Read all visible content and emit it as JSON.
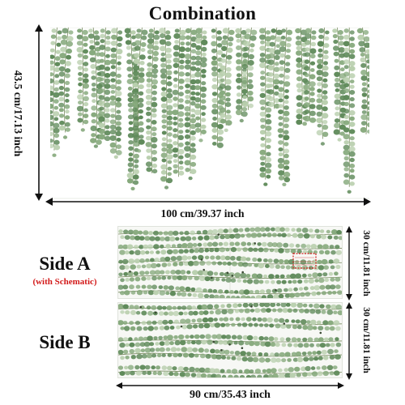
{
  "title": "Combination",
  "combination": {
    "height_label": "43.5 cm/17.13 inch",
    "width_label": "100 cm/39.37 inch"
  },
  "side_a": {
    "label": "Side A",
    "note": "(with Schematic)",
    "height_label": "30 cm/11.81 inch"
  },
  "side_b": {
    "label": "Side B",
    "height_label": "30 cm/11.81 inch"
  },
  "sheet_width_label": "90 cm/35.43 inch",
  "colors": {
    "leaf_dark": "#5f8a5a",
    "leaf_mid": "#86a97c",
    "leaf_light": "#b9cfae",
    "stem": "#7a8c62",
    "schematic_box": "#d21a1a"
  }
}
